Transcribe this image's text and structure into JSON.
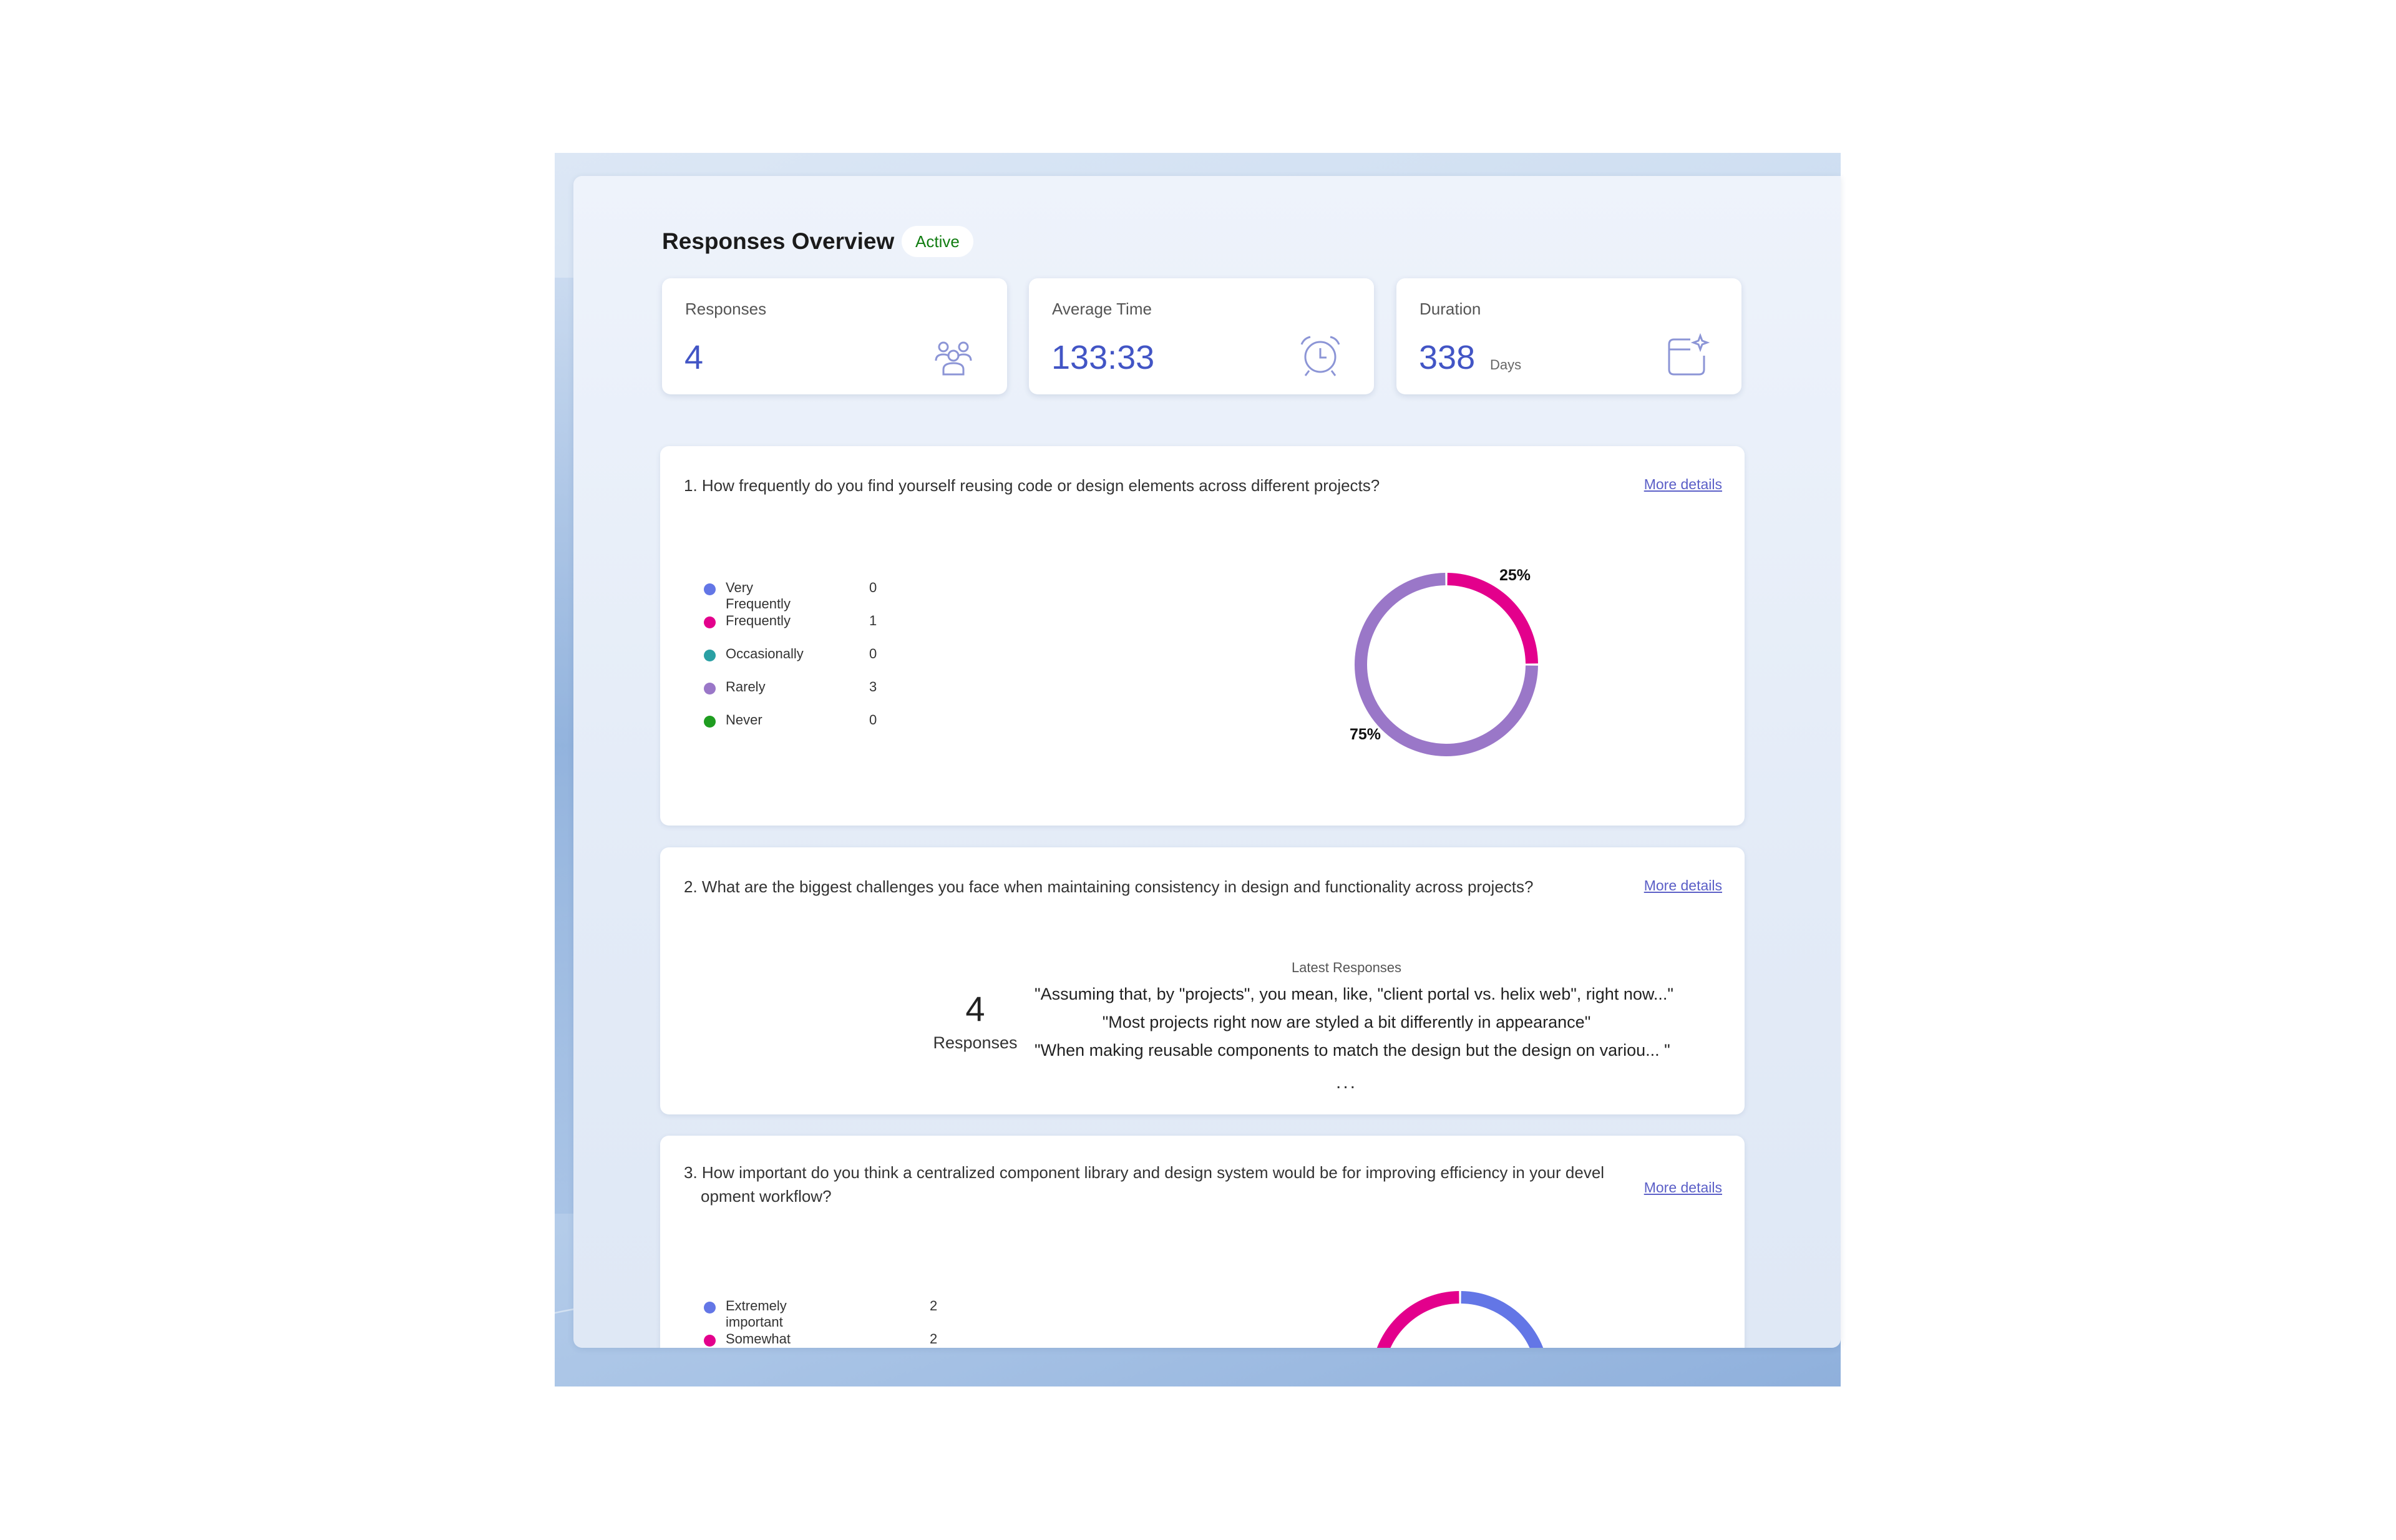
{
  "header": {
    "title": "Responses Overview",
    "status": "Active"
  },
  "stats": [
    {
      "label": "Responses",
      "value": "4",
      "unit": "",
      "icon": "people-group-icon"
    },
    {
      "label": "Average Time",
      "value": "133:33",
      "unit": "",
      "icon": "alarm-clock-icon"
    },
    {
      "label": "Duration",
      "value": "338",
      "unit": "Days",
      "icon": "calendar-sparkle-icon"
    }
  ],
  "more_details_label": "More details",
  "q1": {
    "text": "1. How frequently do you find yourself reusing code or design elements across different projects?",
    "options": [
      {
        "label": "Very Frequently",
        "count": "0",
        "color": "#6376e6"
      },
      {
        "label": "Frequently",
        "count": "1",
        "color": "#e3008c"
      },
      {
        "label": "Occasionally",
        "count": "0",
        "color": "#2aa0a4"
      },
      {
        "label": "Rarely",
        "count": "3",
        "color": "#9a77c8"
      },
      {
        "label": "Never",
        "count": "0",
        "color": "#1f9d20"
      }
    ],
    "pct_frequently": "25%",
    "pct_rarely": "75%"
  },
  "q2": {
    "text": "2. What are the biggest challenges you face when maintaining consistency in design and functionality across projects?",
    "count": "4",
    "count_label": "Responses",
    "latest_title": "Latest Responses",
    "latest": [
      "\"Assuming that, by \"projects\", you mean, like, \"client portal vs. helix web\", right now...\"",
      "\"Most projects right now are styled a bit differently in appearance\"",
      "\"When making reusable components to match the design but the design on variou... \""
    ],
    "ellipsis": "..."
  },
  "q3": {
    "text_line1": "3. How important do you think a centralized component library and design system would be for improving efficiency in your devel",
    "text_line2": "opment workflow?",
    "options": [
      {
        "label": "Extremely important",
        "count": "2",
        "color": "#6376e6"
      },
      {
        "label": "Somewhat important",
        "count": "2",
        "color": "#e3008c"
      }
    ]
  },
  "chart_data": [
    {
      "type": "pie",
      "categories": [
        "Very Frequently",
        "Frequently",
        "Occasionally",
        "Rarely",
        "Never"
      ],
      "values": [
        0,
        1,
        0,
        3,
        0
      ],
      "labels": [
        "25%",
        "75%"
      ]
    },
    {
      "type": "pie",
      "categories": [
        "Extremely important",
        "Somewhat important"
      ],
      "values": [
        2,
        2
      ]
    }
  ]
}
